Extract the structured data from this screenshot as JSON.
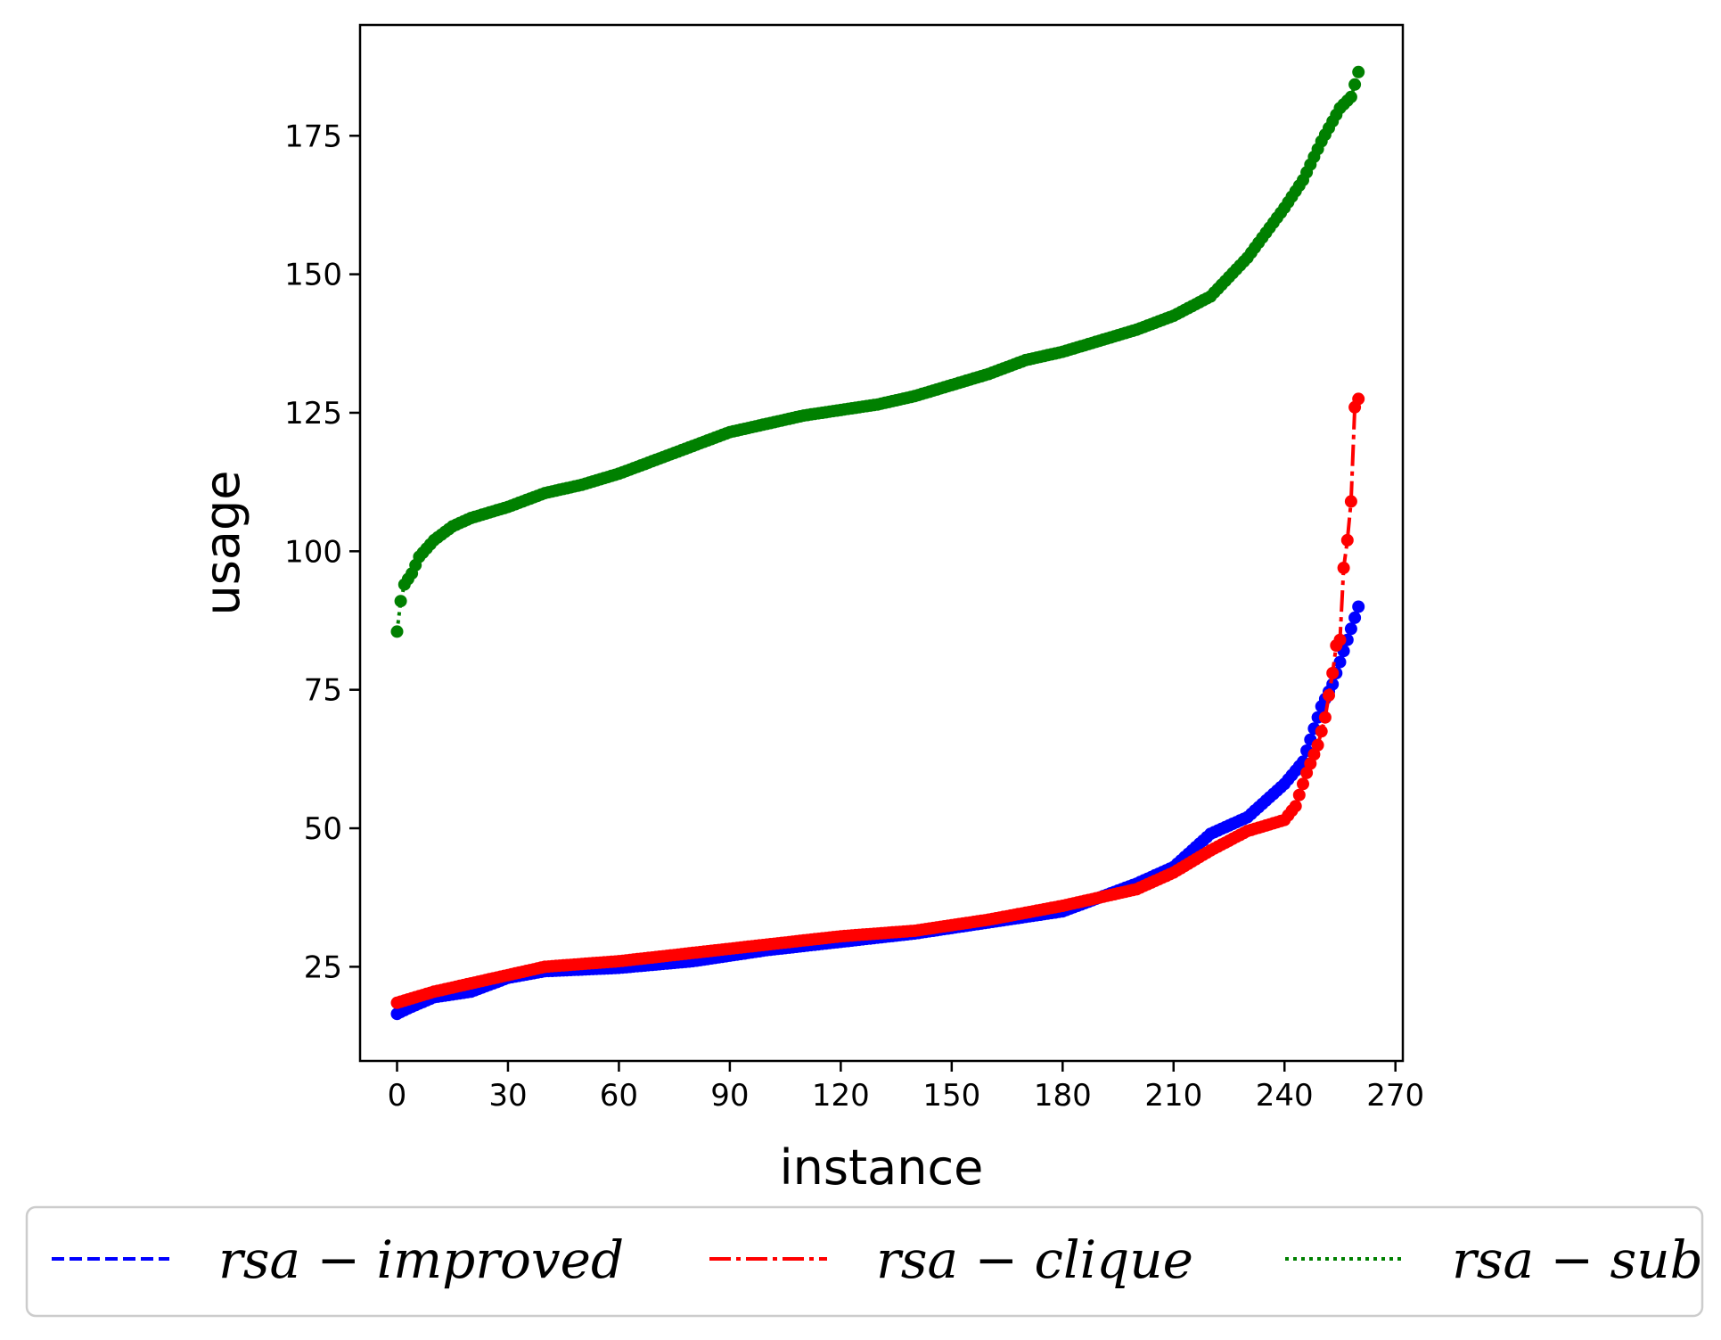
{
  "chart_data": {
    "type": "line",
    "title": "",
    "xlabel": "instance",
    "ylabel": "usage",
    "xlim": [
      -10,
      272
    ],
    "ylim": [
      8,
      195
    ],
    "xticks": [
      0,
      30,
      60,
      90,
      120,
      150,
      180,
      210,
      240,
      270
    ],
    "yticks": [
      25,
      50,
      75,
      100,
      125,
      150,
      175
    ],
    "grid": false,
    "legend_position": "bottom",
    "n_points": 261,
    "series": [
      {
        "name": "rsa − improved",
        "color": "#0000ff",
        "linestyle": "dashed",
        "anchors": [
          [
            0,
            16.5
          ],
          [
            3,
            17.5
          ],
          [
            10,
            19.5
          ],
          [
            20,
            20.5
          ],
          [
            30,
            23
          ],
          [
            40,
            24.2
          ],
          [
            60,
            24.8
          ],
          [
            80,
            26
          ],
          [
            100,
            28
          ],
          [
            120,
            29.5
          ],
          [
            140,
            31
          ],
          [
            160,
            33
          ],
          [
            180,
            35
          ],
          [
            190,
            37.5
          ],
          [
            200,
            40
          ],
          [
            210,
            43
          ],
          [
            220,
            49
          ],
          [
            230,
            52
          ],
          [
            235,
            55
          ],
          [
            240,
            58
          ],
          [
            245,
            62
          ],
          [
            250,
            72
          ],
          [
            253,
            76
          ],
          [
            256,
            82
          ],
          [
            258,
            86
          ],
          [
            260,
            90
          ]
        ]
      },
      {
        "name": "rsa − clique",
        "color": "#ff0000",
        "linestyle": "dashdot",
        "anchors": [
          [
            0,
            18.5
          ],
          [
            10,
            20.5
          ],
          [
            20,
            22
          ],
          [
            30,
            23.5
          ],
          [
            40,
            25
          ],
          [
            60,
            26
          ],
          [
            80,
            27.5
          ],
          [
            100,
            29
          ],
          [
            120,
            30.5
          ],
          [
            140,
            31.5
          ],
          [
            160,
            33.5
          ],
          [
            180,
            36
          ],
          [
            190,
            37.5
          ],
          [
            200,
            39
          ],
          [
            210,
            42
          ],
          [
            220,
            46
          ],
          [
            230,
            49.5
          ],
          [
            240,
            51.5
          ],
          [
            243,
            54
          ],
          [
            246,
            60
          ],
          [
            249,
            65
          ],
          [
            251,
            70
          ],
          [
            253,
            78
          ],
          [
            254,
            83
          ],
          [
            255,
            84
          ],
          [
            256,
            97
          ],
          [
            257,
            102
          ],
          [
            258,
            109
          ],
          [
            259,
            126
          ],
          [
            260,
            127.5
          ]
        ]
      },
      {
        "name": "rsa − sub",
        "color": "#008000",
        "linestyle": "dotted",
        "anchors": [
          [
            0,
            85.5
          ],
          [
            1,
            91
          ],
          [
            2,
            94
          ],
          [
            4,
            96
          ],
          [
            6,
            99
          ],
          [
            10,
            102
          ],
          [
            15,
            104.5
          ],
          [
            20,
            106
          ],
          [
            30,
            108
          ],
          [
            40,
            110.5
          ],
          [
            50,
            112
          ],
          [
            60,
            114
          ],
          [
            70,
            116.5
          ],
          [
            80,
            119
          ],
          [
            90,
            121.5
          ],
          [
            100,
            123
          ],
          [
            110,
            124.5
          ],
          [
            120,
            125.5
          ],
          [
            130,
            126.5
          ],
          [
            140,
            128
          ],
          [
            150,
            130
          ],
          [
            160,
            132
          ],
          [
            170,
            134.5
          ],
          [
            180,
            136
          ],
          [
            190,
            138
          ],
          [
            200,
            140
          ],
          [
            210,
            142.5
          ],
          [
            220,
            146
          ],
          [
            230,
            153
          ],
          [
            240,
            162
          ],
          [
            245,
            167
          ],
          [
            250,
            174
          ],
          [
            255,
            180
          ],
          [
            258,
            182
          ],
          [
            260,
            186.5
          ]
        ]
      }
    ]
  }
}
